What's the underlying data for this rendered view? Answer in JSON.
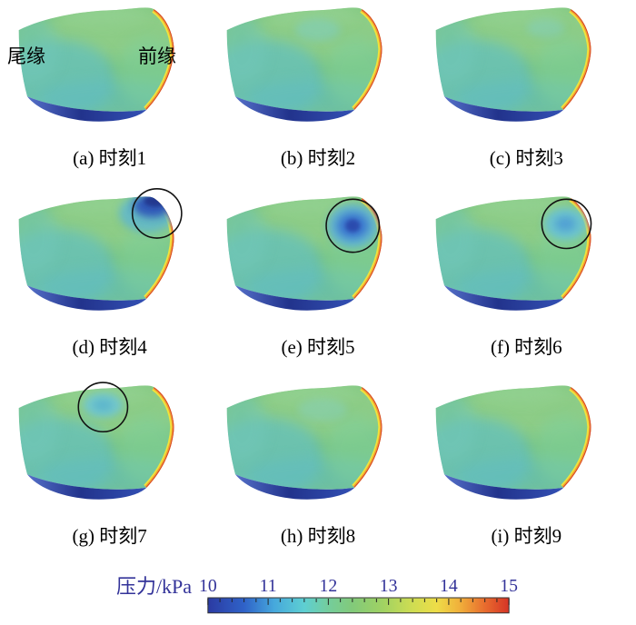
{
  "figure": {
    "layout": "3x3 grid of blade-surface pressure contour plots",
    "annotations": {
      "trailing_edge": "尾缘",
      "leading_edge": "前缘"
    },
    "panels": [
      {
        "id": "a",
        "label": "(a) 时刻1",
        "circled": false
      },
      {
        "id": "b",
        "label": "(b) 时刻2",
        "circled": false
      },
      {
        "id": "c",
        "label": "(c) 时刻3",
        "circled": false
      },
      {
        "id": "d",
        "label": "(d) 时刻4",
        "circled": true
      },
      {
        "id": "e",
        "label": "(e) 时刻5",
        "circled": true
      },
      {
        "id": "f",
        "label": "(f) 时刻6",
        "circled": true
      },
      {
        "id": "g",
        "label": "(g) 时刻7",
        "circled": true
      },
      {
        "id": "h",
        "label": "(h) 时刻8",
        "circled": false
      },
      {
        "id": "i",
        "label": "(i) 时刻9",
        "circled": false
      }
    ],
    "colorbar": {
      "label": "压力/kPa",
      "ticks": [
        "10",
        "11",
        "12",
        "13",
        "14",
        "15"
      ],
      "text_color": "#333399",
      "colors": [
        "#2b3aa2",
        "#2f62c8",
        "#46a8dc",
        "#5ecfd2",
        "#74cd9c",
        "#82ca7a",
        "#a0d263",
        "#cfdd52",
        "#eedd48",
        "#f0ad3a",
        "#e86c2e",
        "#d63426"
      ]
    }
  },
  "chart_data": {
    "type": "heatmap",
    "title": "",
    "variable": "压力/kPa",
    "value_range": [
      10,
      15
    ],
    "colorbar_ticks": [
      10,
      11,
      12,
      13,
      14,
      15
    ],
    "colormap": "rainbow (dark blue → blue → cyan → green → yellow → orange → red)",
    "panels": [
      {
        "label": "(a) 时刻1",
        "surface_pressure_kPa": "body mostly 11.5–12.5 (green/teal); leading edge 13–15 (yellow–red); lower band ≈10 (dark blue)",
        "low_pressure_spot": "none; trailing edge (尾缘) left, leading edge (前缘) right"
      },
      {
        "label": "(b) 时刻2",
        "surface_pressure_kPa": "body mostly 11.5–12.5; leading edge 13–15; lower band ≈10",
        "low_pressure_spot": "none"
      },
      {
        "label": "(c) 时刻3",
        "surface_pressure_kPa": "body mostly 11.5–12.5; leading edge 13–15; lower band ≈10",
        "low_pressure_spot": "none"
      },
      {
        "label": "(d) 时刻4",
        "surface_pressure_kPa": "body 11.5–12.5; leading edge 13–15; lower band ≈10",
        "low_pressure_spot": "≈10–10.5 dark-blue spot forming at upper leading-edge corner (circled)"
      },
      {
        "label": "(e) 时刻5",
        "surface_pressure_kPa": "body 11.5–12.5; leading edge 13–15; lower band ≈10",
        "low_pressure_spot": "≈10.5 strong circular low-pressure spot near upper leading edge (circled)"
      },
      {
        "label": "(f) 时刻6",
        "surface_pressure_kPa": "body 11.5–12.5; leading edge 13–15; lower band ≈10",
        "low_pressure_spot": "≈11 weakening cyan spot near upper leading edge (circled)"
      },
      {
        "label": "(g) 时刻7",
        "surface_pressure_kPa": "body 11.5–12.5; leading edge 13–15; lower band ≈10",
        "low_pressure_spot": "≈11.5 faint spot at upper mid-chord (circled)"
      },
      {
        "label": "(h) 时刻8",
        "surface_pressure_kPa": "body 11.5–12.5; leading edge 13–15; lower band ≈10",
        "low_pressure_spot": "dissipated, back to baseline"
      },
      {
        "label": "(i) 时刻9",
        "surface_pressure_kPa": "body 11.5–12.5; leading edge 13–15; lower band ≈10",
        "low_pressure_spot": "dissipated, back to baseline"
      }
    ]
  }
}
